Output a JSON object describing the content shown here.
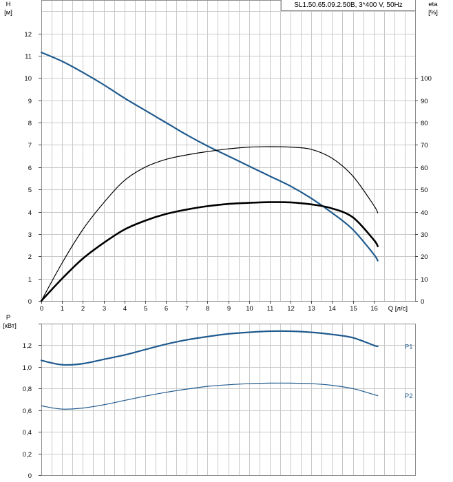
{
  "header": {
    "model_label": "SL1.50.65.09.2.50B, 3*400 V, 50Hz"
  },
  "chart_data": [
    {
      "type": "line",
      "name": "head-efficiency",
      "x_label": "Q [л/с]",
      "y_label_left": [
        "H",
        "[м]"
      ],
      "y_label_right": [
        "eta",
        "[%]"
      ],
      "xlim": [
        0,
        18
      ],
      "ylim_left": [
        0,
        13.5
      ],
      "ylim_right": [
        0,
        135
      ],
      "x_ticks": [
        0,
        1,
        2,
        3,
        4,
        5,
        6,
        7,
        8,
        9,
        10,
        11,
        12,
        13,
        14,
        15,
        16
      ],
      "y_ticks_left": [
        0,
        1,
        2,
        3,
        4,
        5,
        6,
        7,
        8,
        9,
        10,
        11,
        12
      ],
      "y_ticks_right": [
        0,
        10,
        20,
        30,
        40,
        50,
        60,
        70,
        80,
        90,
        100
      ],
      "grid": true,
      "series": [
        {
          "role": "head",
          "axis": "left",
          "color": "#1f5a8e",
          "width": 2.2,
          "x": [
            0,
            1,
            2,
            3,
            4,
            5,
            6,
            7,
            8,
            9,
            10,
            11,
            12,
            13,
            14,
            15,
            16,
            16.2
          ],
          "y": [
            11.15,
            10.75,
            10.25,
            9.7,
            9.1,
            8.55,
            8.0,
            7.45,
            6.95,
            6.5,
            6.05,
            5.6,
            5.15,
            4.6,
            3.95,
            3.2,
            2.1,
            1.8
          ]
        },
        {
          "role": "total-efficiency",
          "axis": "right",
          "color": "#000000",
          "width": 2.6,
          "x": [
            0,
            1,
            2,
            3,
            4,
            5,
            6,
            7,
            8,
            9,
            10,
            11,
            12,
            13,
            14,
            15,
            16,
            16.2
          ],
          "y": [
            0,
            10,
            19,
            26,
            32,
            36,
            39,
            41,
            42.5,
            43.5,
            44,
            44.3,
            44.2,
            43.3,
            41.5,
            37.5,
            27.5,
            24.5
          ]
        },
        {
          "role": "hydraulic-efficiency",
          "axis": "right",
          "color": "#000000",
          "width": 1.2,
          "x": [
            0,
            1,
            2,
            3,
            4,
            5,
            6,
            7,
            8,
            9,
            10,
            11,
            12,
            13,
            14,
            15,
            16,
            16.2
          ],
          "y": [
            0,
            17,
            32,
            44,
            54,
            60,
            63.5,
            65.5,
            67,
            68.2,
            69,
            69.2,
            69,
            68,
            64,
            56,
            43,
            39.5
          ]
        }
      ]
    },
    {
      "type": "line",
      "name": "power",
      "y_label": [
        "P",
        "[кВт]"
      ],
      "xlim": [
        0,
        18
      ],
      "ylim": [
        0,
        1.4
      ],
      "x_ticks": [
        0,
        1,
        2,
        3,
        4,
        5,
        6,
        7,
        8,
        9,
        10,
        11,
        12,
        13,
        14,
        15,
        16
      ],
      "y_ticks": [
        "0",
        "0,2",
        "0,4",
        "0,6",
        "0,8",
        "1,0",
        "1,2",
        ""
      ],
      "y_tick_values": [
        0,
        0.2,
        0.4,
        0.6,
        0.8,
        1.0,
        1.2,
        1.4
      ],
      "grid": true,
      "series": [
        {
          "name": "P1",
          "color": "#1f5a8e",
          "width": 2.2,
          "x": [
            0,
            1,
            2,
            3,
            4,
            5,
            6,
            7,
            8,
            9,
            10,
            11,
            12,
            13,
            14,
            15,
            16,
            16.2
          ],
          "y": [
            1.06,
            1.02,
            1.03,
            1.07,
            1.11,
            1.16,
            1.21,
            1.25,
            1.28,
            1.305,
            1.32,
            1.33,
            1.33,
            1.32,
            1.3,
            1.27,
            1.2,
            1.19
          ]
        },
        {
          "name": "P2",
          "color": "#1f5a8e",
          "width": 1.2,
          "x": [
            0,
            1,
            2,
            3,
            4,
            5,
            6,
            7,
            8,
            9,
            10,
            11,
            12,
            13,
            14,
            15,
            16,
            16.2
          ],
          "y": [
            0.64,
            0.61,
            0.62,
            0.65,
            0.69,
            0.73,
            0.765,
            0.795,
            0.82,
            0.835,
            0.845,
            0.85,
            0.85,
            0.845,
            0.83,
            0.8,
            0.745,
            0.735
          ]
        }
      ]
    }
  ]
}
